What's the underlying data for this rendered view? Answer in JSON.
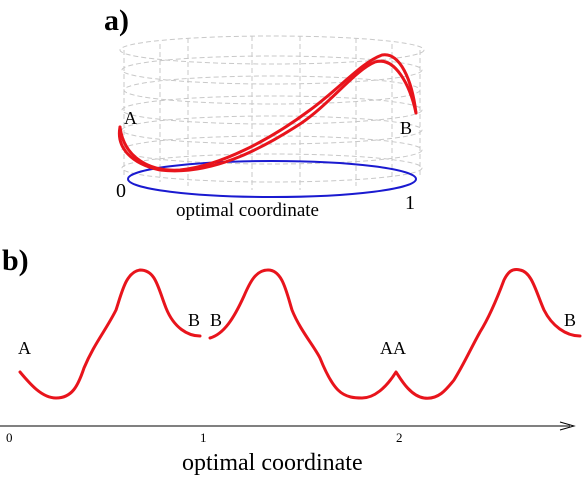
{
  "panel_a": {
    "label": "a)",
    "start_label": "A",
    "end_label": "B",
    "axis_start": "0",
    "axis_end": "1",
    "axis_title": "optimal coordinate",
    "colors": {
      "path": "#e8141c",
      "base_ellipse": "#1a1ad0",
      "grid": "#c8c8c8"
    }
  },
  "panel_b": {
    "label": "b)",
    "labels": {
      "a_left": "A",
      "b_first": "B",
      "b_second": "B",
      "aa_middle": "AA",
      "b_right": "B"
    },
    "ticks": [
      "0",
      "1",
      "2"
    ],
    "axis_title": "optimal coordinate",
    "colors": {
      "curve": "#e8141c",
      "axis": "#000000"
    }
  }
}
